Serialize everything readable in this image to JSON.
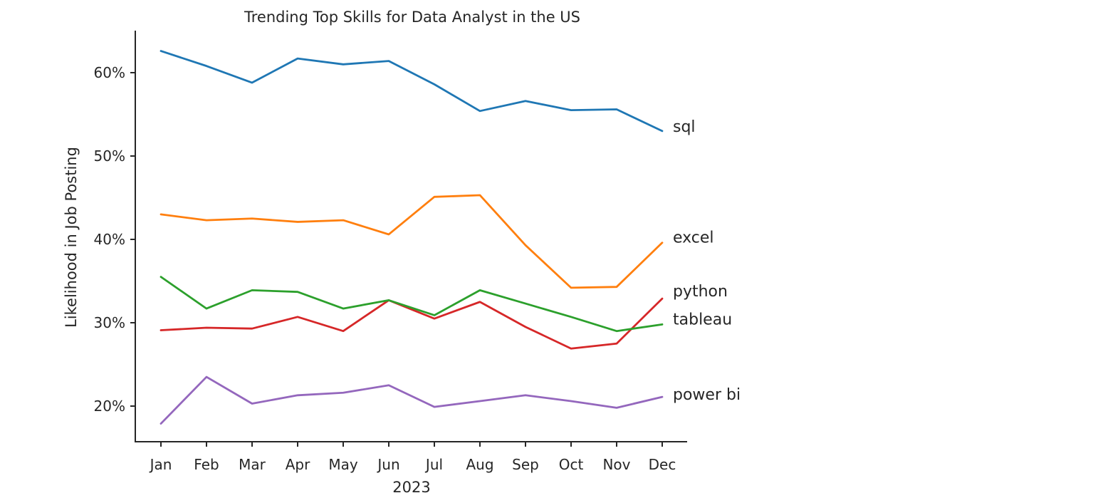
{
  "chart_data": {
    "type": "line",
    "title": "Trending Top Skills for Data Analyst in the US",
    "xlabel": "2023",
    "ylabel": "Likelihood in Job Posting",
    "categories": [
      "Jan",
      "Feb",
      "Mar",
      "Apr",
      "May",
      "Jun",
      "Jul",
      "Aug",
      "Sep",
      "Oct",
      "Nov",
      "Dec"
    ],
    "yticks": [
      20,
      30,
      40,
      50,
      60
    ],
    "ytick_labels": [
      "20%",
      "30%",
      "40%",
      "50%",
      "60%"
    ],
    "ylim": [
      16,
      65
    ],
    "grid": false,
    "legend": "none",
    "series": [
      {
        "name": "sql",
        "color": "#1f77b4",
        "values": [
          62.6,
          60.8,
          58.8,
          61.7,
          61.0,
          61.4,
          58.6,
          55.4,
          56.6,
          55.5,
          55.6,
          53.0
        ]
      },
      {
        "name": "excel",
        "color": "#ff7f0e",
        "values": [
          43.0,
          42.3,
          42.5,
          42.1,
          42.3,
          40.6,
          45.1,
          45.3,
          39.3,
          34.2,
          34.3,
          39.6
        ]
      },
      {
        "name": "python",
        "color": "#d62728",
        "values": [
          29.1,
          29.4,
          29.3,
          30.7,
          29.0,
          32.7,
          30.5,
          32.5,
          29.5,
          26.9,
          27.5,
          32.9
        ]
      },
      {
        "name": "tableau",
        "color": "#2ca02c",
        "values": [
          35.5,
          31.7,
          33.9,
          33.7,
          31.7,
          32.7,
          30.9,
          33.9,
          32.3,
          30.7,
          29.0,
          29.8
        ]
      },
      {
        "name": "power bi",
        "color": "#9467bd",
        "values": [
          17.9,
          23.5,
          20.3,
          21.3,
          21.6,
          22.5,
          19.9,
          20.6,
          21.3,
          20.6,
          19.8,
          21.1
        ]
      }
    ]
  }
}
